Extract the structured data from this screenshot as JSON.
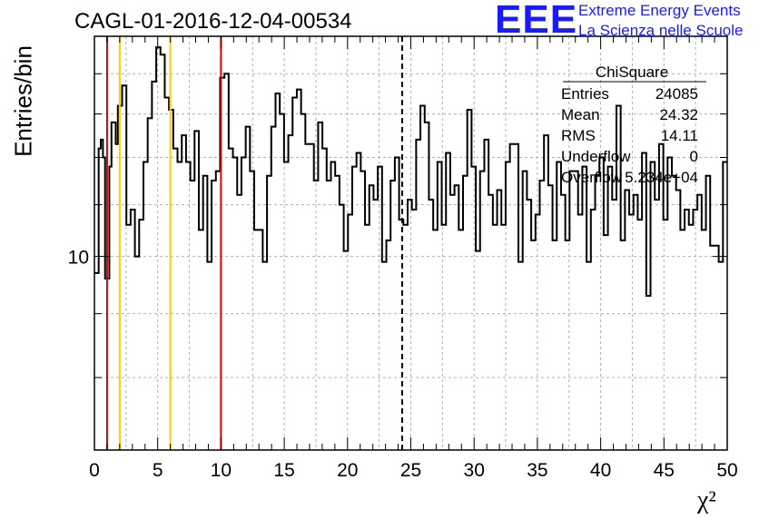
{
  "header": {
    "title": "CAGL-01-2016-12-04-00534",
    "logo_mark": "EEE",
    "logo_line1": "Extreme Energy Events",
    "logo_line2": "La Scienza nelle Scuole",
    "brand_color": "#1a1aff"
  },
  "chart_data": {
    "type": "histogram",
    "xlabel": "χ²",
    "ylabel": "Entries/bin",
    "xlim": [
      0,
      50
    ],
    "ylog": true,
    "ylim_approx": [
      7,
      15
    ],
    "grid": true,
    "grid_style": "dashed",
    "x_ticks": [
      "0",
      "5",
      "10",
      "15",
      "20",
      "25",
      "30",
      "35",
      "40",
      "45",
      "50"
    ],
    "y_tick_labels": [
      "10"
    ],
    "bin_width": 0.5,
    "bin_start": 0,
    "values": [
      9.7,
      9.7,
      12.2,
      12.4,
      12.0,
      9.6,
      9.6,
      11.8,
      12.8,
      12.8,
      12.3,
      13.2,
      13.2,
      13.7,
      13.7,
      10.6,
      10.6,
      10.9,
      10.9,
      10.0,
      10.0,
      10.7,
      10.7,
      11.9,
      11.9,
      12.9,
      12.9,
      13.8,
      13.8,
      14.7,
      14.7,
      14.5,
      14.5,
      13.4,
      13.4,
      13.1,
      13.1,
      12.2,
      12.2,
      11.9,
      11.9,
      12.5,
      12.5,
      11.9,
      11.9,
      11.5,
      11.5,
      12.6,
      12.6,
      10.5,
      10.5,
      11.6,
      11.6,
      9.9,
      9.9,
      11.5,
      11.5,
      11.7,
      11.7,
      13.9,
      13.9,
      14.0,
      14.0,
      12.2,
      12.2,
      12.0,
      12.0,
      11.2,
      11.2,
      12.0,
      12.0,
      12.7,
      12.7,
      11.7,
      11.7,
      10.5,
      10.5,
      10.5,
      10.5,
      9.9,
      9.9,
      11.6,
      11.6,
      12.7,
      12.7,
      13.5,
      13.5,
      13.0,
      13.0,
      11.9,
      11.9,
      12.5,
      12.5,
      13.4,
      13.4,
      13.6,
      13.6,
      13.0,
      13.0,
      12.3,
      12.3,
      12.3,
      12.3,
      11.5,
      11.5,
      12.8,
      12.8,
      12.2,
      12.2,
      11.5,
      11.5,
      11.9,
      11.9,
      11.6,
      11.6,
      11.0,
      11.0,
      10.1,
      10.1,
      10.8,
      10.8,
      11.8,
      11.8,
      12.1,
      12.1,
      11.7,
      11.7,
      10.6,
      10.6,
      11.4,
      11.4,
      11.1,
      11.1,
      11.8,
      11.8,
      9.9,
      9.9,
      10.3,
      10.3,
      11.5,
      11.5,
      12.0,
      12.0,
      10.7,
      10.7,
      10.6,
      10.6,
      11.1,
      11.1,
      10.9,
      10.9,
      12.4,
      12.4,
      13.2,
      13.2,
      12.8,
      12.8,
      11.1,
      11.1,
      10.5,
      10.5,
      11.9,
      11.9,
      10.6,
      10.6,
      12.1,
      12.1,
      11.2,
      11.2,
      11.4,
      11.4,
      10.5,
      10.5,
      11.6,
      11.6,
      13.1,
      13.1,
      11.8,
      11.8,
      10.1,
      10.1,
      11.7,
      11.7,
      12.4,
      12.4,
      11.2,
      11.2,
      10.6,
      10.6,
      11.3,
      11.3,
      10.6,
      10.6,
      11.9,
      11.9,
      12.3,
      12.3,
      12.3,
      12.3,
      9.9,
      9.9,
      11.7,
      11.7,
      11.1,
      11.1,
      10.3,
      10.3,
      10.8,
      10.8,
      11.5,
      11.5,
      12.5,
      12.5,
      11.4,
      11.4,
      10.3,
      10.3,
      11.9,
      11.9,
      11.2,
      11.2,
      10.3,
      10.3,
      11.7,
      11.7,
      11.7,
      11.7,
      10.8,
      10.8,
      11.8,
      11.8,
      9.9,
      9.9,
      10.9,
      10.9,
      11.6,
      11.6,
      12.0,
      12.0,
      10.4,
      10.4,
      11.8,
      11.8,
      11.1,
      11.1,
      13.2,
      13.2,
      10.3,
      10.3,
      11.3,
      11.3,
      10.8,
      10.8,
      11.2,
      11.2,
      10.7,
      10.7,
      12.1,
      12.1,
      9.3,
      9.3,
      11.9,
      11.9,
      11.1,
      11.1,
      12.3,
      12.3,
      10.7,
      10.7,
      12.0,
      12.0,
      11.6,
      11.6,
      11.3,
      11.3,
      10.5,
      10.5,
      10.9,
      10.9,
      10.6,
      10.6,
      10.9,
      10.9,
      11.2,
      11.2,
      10.5,
      10.5,
      11.6,
      11.6,
      10.2,
      10.2,
      10.2,
      10.2,
      9.9,
      9.9,
      11.9,
      11.9
    ],
    "cut_lines": [
      {
        "x": 1,
        "color": "#dd0000"
      },
      {
        "x": 2,
        "color": "#ffcc00"
      },
      {
        "x": 6,
        "color": "#ffcc00"
      },
      {
        "x": 10,
        "color": "#dd0000"
      },
      {
        "x": 24.32,
        "color": "#000000",
        "style": "dashed"
      }
    ],
    "stats_box": {
      "title": "ChiSquare",
      "rows": [
        {
          "label": "Entries",
          "value": "24085"
        },
        {
          "label": "Mean",
          "value": "24.32"
        },
        {
          "label": "RMS",
          "value": "14.11"
        },
        {
          "label": "Underflow",
          "value": "0"
        },
        {
          "label": "Overflow",
          "value": "5.234e+04"
        }
      ]
    }
  }
}
